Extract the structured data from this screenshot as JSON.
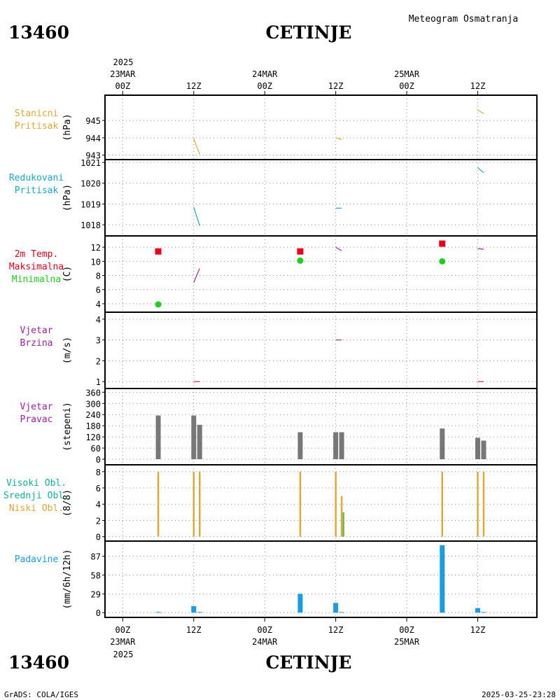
{
  "header": {
    "station_id": "13460",
    "station_name": "CETINJE",
    "title": "Meteogram Osmatranja"
  },
  "footer": {
    "station_id": "13460",
    "station_name": "CETINJE",
    "credits": "GrADS: COLA/IGES",
    "timestamp": "2025-03-25-23:28"
  },
  "time_axis": {
    "top_year": "2025",
    "bottom_year": "2025",
    "ticks": [
      {
        "t": 0,
        "hour": "00Z",
        "date": "23MAR"
      },
      {
        "t": 12,
        "hour": "12Z",
        "date": ""
      },
      {
        "t": 24,
        "hour": "00Z",
        "date": "24MAR"
      },
      {
        "t": 36,
        "hour": "12Z",
        "date": ""
      },
      {
        "t": 48,
        "hour": "00Z",
        "date": "25MAR"
      },
      {
        "t": 60,
        "hour": "12Z",
        "date": ""
      }
    ],
    "range_hours": [
      -3,
      70
    ]
  },
  "colors": {
    "orange": "#e0a838",
    "cyan": "#1aa8c8",
    "red": "#e8001c",
    "green": "#22cc22",
    "purple": "#a020a0",
    "magenta": "#c0206a",
    "gray": "#777777",
    "blue": "#1a9de0",
    "teal": "#10b0a0",
    "darkgreen": "#66bb44"
  },
  "chart_data": [
    {
      "id": "pressure",
      "type": "line",
      "label_lines": [
        "Stanicni",
        "Pritisak"
      ],
      "label_color": "orange",
      "ylabel": "(hPa)",
      "ylim": [
        942.9,
        946.3
      ],
      "yticks": [
        943,
        944,
        945
      ],
      "series": [
        {
          "name": "Stanicni Pritisak",
          "color": "orange",
          "segments": [
            [
              [
                12,
                943.95
              ],
              [
                13,
                943.05
              ]
            ],
            [
              [
                36,
                944.0
              ],
              [
                37,
                943.9
              ]
            ],
            [
              [
                60,
                945.6
              ],
              [
                61,
                945.4
              ]
            ]
          ]
        }
      ]
    },
    {
      "id": "reduced",
      "type": "line",
      "label_lines": [
        "Redukovani",
        "Pritisak"
      ],
      "label_color": "cyan",
      "ylabel": "(hPa)",
      "ylim": [
        1017.6,
        1021.0
      ],
      "yticks": [
        1018,
        1019,
        1020,
        1021
      ],
      "series": [
        {
          "name": "Redukovani Pritisak",
          "color": "cyan",
          "segments": [
            [
              [
                12,
                1018.85
              ],
              [
                13,
                1017.95
              ]
            ],
            [
              [
                36,
                1018.8
              ],
              [
                37,
                1018.8
              ]
            ],
            [
              [
                60,
                1020.75
              ],
              [
                61,
                1020.5
              ]
            ]
          ]
        }
      ]
    },
    {
      "id": "temperature",
      "type": "line",
      "label_lines": [
        "2m Temp.",
        "Maksimalna",
        "Minimalna"
      ],
      "label_colors": [
        "red",
        "red",
        "green"
      ],
      "ylabel": "(C)",
      "ylim": [
        3.2,
        13.2
      ],
      "yticks": [
        4,
        6,
        8,
        10,
        12
      ],
      "series": [
        {
          "name": "2m Temp.",
          "color": "purple",
          "segments": [
            [
              [
                12,
                7.0
              ],
              [
                13,
                9.0
              ]
            ],
            [
              [
                36,
                12.0
              ],
              [
                37,
                11.5
              ]
            ],
            [
              [
                60,
                11.8
              ],
              [
                61,
                11.7
              ]
            ]
          ]
        },
        {
          "name": "Maksimalna",
          "color": "red",
          "marker": "square",
          "points": [
            [
              6,
              11.4
            ],
            [
              30,
              11.4
            ],
            [
              54,
              12.5
            ]
          ]
        },
        {
          "name": "Minimalna",
          "color": "green",
          "marker": "circle",
          "points": [
            [
              6,
              3.9
            ],
            [
              30,
              10.1
            ],
            [
              54,
              10.0
            ]
          ]
        }
      ]
    },
    {
      "id": "wind_speed",
      "type": "line",
      "label_lines": [
        "Vjetar",
        "Brzina"
      ],
      "label_color": "purple",
      "ylabel": "(m/s)",
      "ylim": [
        0.8,
        4.2
      ],
      "yticks": [
        1,
        2,
        3,
        4
      ],
      "series": [
        {
          "name": "Vjetar Brzina",
          "color": "magenta",
          "segments": [
            [
              [
                12,
                1.0
              ],
              [
                13,
                1.0
              ]
            ],
            [
              [
                36,
                3.0
              ],
              [
                37,
                3.0
              ]
            ],
            [
              [
                60,
                1.0
              ],
              [
                61,
                1.0
              ]
            ]
          ]
        }
      ]
    },
    {
      "id": "wind_dir",
      "type": "bar",
      "label_lines": [
        "Vjetar",
        "Pravac"
      ],
      "label_color": "purple",
      "ylabel": "(stepeni)",
      "ylim": [
        -15,
        365
      ],
      "yticks": [
        0,
        60,
        120,
        180,
        240,
        300,
        360
      ],
      "series": [
        {
          "name": "Vjetar Pravac",
          "color": "gray",
          "points": [
            [
              6,
              235
            ],
            [
              12,
              235
            ],
            [
              13,
              185
            ],
            [
              30,
              145
            ],
            [
              36,
              145
            ],
            [
              37,
              145
            ],
            [
              54,
              165
            ],
            [
              60,
              115
            ],
            [
              61,
              100
            ]
          ]
        }
      ]
    },
    {
      "id": "clouds",
      "type": "bar",
      "label_lines": [
        "Visoki Obl.",
        "Srednji Obl.",
        "Niski Obl."
      ],
      "label_colors": [
        "teal",
        "teal",
        "orange"
      ],
      "ylabel": "(8/8)",
      "ylim": [
        -0.2,
        8.5
      ],
      "yticks": [
        0,
        2,
        4,
        6,
        8
      ],
      "series": [
        {
          "name": "Niski Obl.",
          "color": "orange",
          "points": [
            [
              6,
              8
            ],
            [
              12,
              8
            ],
            [
              13,
              8
            ],
            [
              30,
              8
            ],
            [
              36,
              8
            ],
            [
              37,
              5
            ],
            [
              54,
              8
            ],
            [
              60,
              8
            ],
            [
              61,
              8
            ]
          ]
        },
        {
          "name": "Srednji Obl.",
          "color": "darkgreen",
          "points": [
            [
              37.3,
              3
            ]
          ]
        }
      ]
    },
    {
      "id": "precip",
      "type": "bar",
      "label_lines": [
        "Padavine"
      ],
      "label_color": "blue",
      "ylabel": "(mm/6h/12h)",
      "ylim": [
        -3,
        106
      ],
      "yticks": [
        0,
        29,
        58,
        87
      ],
      "series": [
        {
          "name": "Padavine",
          "color": "blue",
          "points": [
            [
              6,
              1
            ],
            [
              12,
              10
            ],
            [
              13,
              1
            ],
            [
              30,
              29
            ],
            [
              36,
              15
            ],
            [
              37,
              1
            ],
            [
              54,
              104
            ],
            [
              60,
              7
            ],
            [
              61,
              1
            ]
          ]
        }
      ]
    }
  ]
}
